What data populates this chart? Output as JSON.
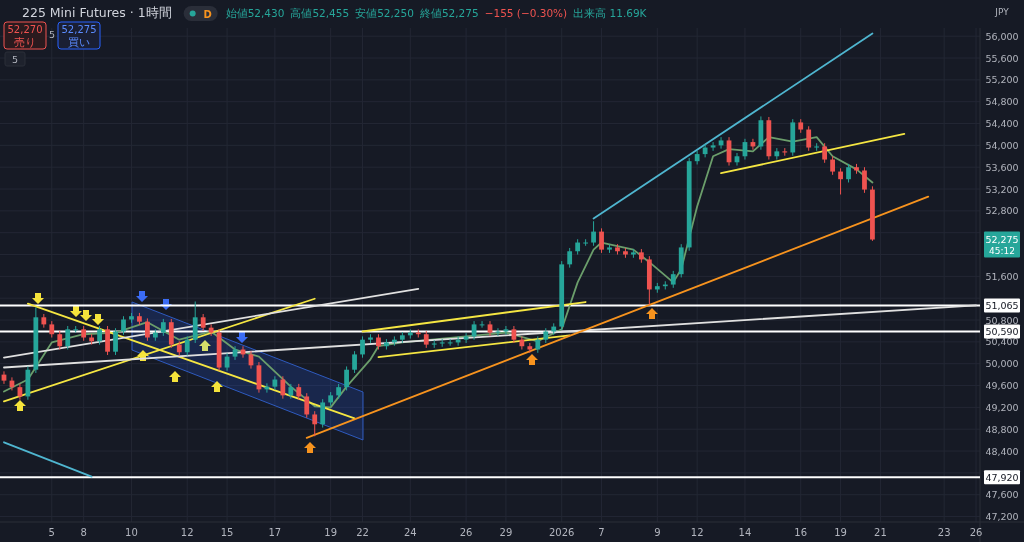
{
  "chart_data": {
    "type": "candlestick",
    "annotations": [
      "225 Mini Futures · 1時間",
      "D",
      "始値52,430",
      "高値52,455",
      "安値52,250",
      "終値52,275",
      "−155 (−0.30%)",
      "出来高 11.69K",
      "52,270",
      "売り",
      "5",
      "52,275",
      "買い",
      "5",
      "JPY",
      "52,275",
      "45:12"
    ],
    "categories": [
      null,
      null,
      null,
      null,
      null,
      null,
      "5",
      null,
      null,
      null,
      "8",
      null,
      null,
      null,
      null,
      null,
      "10",
      null,
      null,
      null,
      null,
      null,
      null,
      "12",
      null,
      null,
      null,
      null,
      "15",
      null,
      null,
      null,
      null,
      null,
      "17",
      null,
      null,
      null,
      null,
      null,
      null,
      "19",
      null,
      null,
      null,
      "22",
      null,
      null,
      null,
      null,
      null,
      "24",
      null,
      null,
      null,
      null,
      null,
      null,
      "26",
      null,
      null,
      null,
      null,
      "29",
      null,
      null,
      null,
      null,
      null,
      null,
      "2026",
      null,
      null,
      null,
      null,
      "7",
      null,
      null,
      null,
      null,
      null,
      null,
      "9",
      null,
      null,
      null,
      null,
      "12",
      null,
      null,
      null,
      null,
      null,
      "14",
      null,
      null,
      null,
      null,
      null,
      null,
      "16",
      null,
      null,
      null,
      null,
      "19",
      null,
      null,
      null,
      null,
      "21",
      null,
      null,
      null,
      null,
      null,
      null,
      null,
      "23",
      null,
      null,
      null,
      "26"
    ],
    "ohlc": [
      [
        49800,
        49860,
        49630,
        49690
      ],
      [
        49690,
        49750,
        49510,
        49570
      ],
      [
        49570,
        49630,
        49340,
        49400
      ],
      [
        49400,
        49950,
        49340,
        49890
      ],
      [
        49890,
        51030,
        49830,
        50850
      ],
      [
        50850,
        50910,
        50660,
        50720
      ],
      [
        50720,
        50780,
        50480,
        50540
      ],
      [
        50540,
        50600,
        50260,
        50320
      ],
      [
        50320,
        50690,
        50260,
        50630
      ],
      [
        50630,
        50690,
        50570,
        50630
      ],
      [
        50630,
        50690,
        50420,
        50480
      ],
      [
        50480,
        50540,
        50350,
        50410
      ],
      [
        50410,
        50690,
        50350,
        50630
      ],
      [
        50630,
        50690,
        50160,
        50220
      ],
      [
        50220,
        50650,
        50160,
        50590
      ],
      [
        50590,
        50870,
        50530,
        50810
      ],
      [
        50810,
        50930,
        50750,
        50870
      ],
      [
        50870,
        50930,
        50710,
        50770
      ],
      [
        50770,
        50830,
        50420,
        50480
      ],
      [
        50480,
        50630,
        50420,
        50570
      ],
      [
        50570,
        50820,
        50510,
        50760
      ],
      [
        50760,
        50820,
        50290,
        50350
      ],
      [
        50350,
        50410,
        50150,
        50210
      ],
      [
        50210,
        50500,
        50150,
        50440
      ],
      [
        50440,
        51140,
        50380,
        50850
      ],
      [
        50850,
        50910,
        50600,
        50660
      ],
      [
        50660,
        50720,
        50510,
        50570
      ],
      [
        50570,
        50630,
        49870,
        49930
      ],
      [
        49930,
        50190,
        49870,
        50130
      ],
      [
        50130,
        50320,
        50070,
        50260
      ],
      [
        50260,
        50320,
        50110,
        50170
      ],
      [
        50170,
        50230,
        49910,
        49970
      ],
      [
        49970,
        50030,
        49470,
        49530
      ],
      [
        49530,
        49640,
        49470,
        49580
      ],
      [
        49580,
        49770,
        49520,
        49710
      ],
      [
        49710,
        49770,
        49360,
        49420
      ],
      [
        49420,
        49630,
        49360,
        49570
      ],
      [
        49570,
        49630,
        49340,
        49400
      ],
      [
        49400,
        49460,
        49010,
        49070
      ],
      [
        49070,
        49130,
        48670,
        48890
      ],
      [
        48890,
        49350,
        48830,
        49290
      ],
      [
        49290,
        49480,
        49230,
        49420
      ],
      [
        49420,
        49630,
        49360,
        49570
      ],
      [
        49570,
        49950,
        49510,
        49890
      ],
      [
        49890,
        50230,
        49830,
        50170
      ],
      [
        50170,
        50500,
        50110,
        50440
      ],
      [
        50440,
        50540,
        50380,
        50480
      ],
      [
        50480,
        50540,
        50260,
        50320
      ],
      [
        50320,
        50450,
        50260,
        50390
      ],
      [
        50390,
        50500,
        50330,
        50440
      ],
      [
        50440,
        50580,
        50380,
        50520
      ],
      [
        50520,
        50630,
        50460,
        50570
      ],
      [
        50570,
        50630,
        50480,
        50540
      ],
      [
        50540,
        50600,
        50290,
        50350
      ],
      [
        50350,
        50430,
        50290,
        50370
      ],
      [
        50370,
        50450,
        50310,
        50390
      ],
      [
        50390,
        50450,
        50330,
        50390
      ],
      [
        50390,
        50500,
        50330,
        50440
      ],
      [
        50440,
        50560,
        50380,
        50500
      ],
      [
        50500,
        50780,
        50440,
        50720
      ],
      [
        50720,
        50780,
        50660,
        50720
      ],
      [
        50720,
        50780,
        50510,
        50570
      ],
      [
        50570,
        50650,
        50510,
        50590
      ],
      [
        50590,
        50690,
        50530,
        50630
      ],
      [
        50630,
        50690,
        50380,
        50440
      ],
      [
        50440,
        50500,
        50260,
        50320
      ],
      [
        50320,
        50380,
        50200,
        50260
      ],
      [
        50260,
        50500,
        50200,
        50440
      ],
      [
        50440,
        50650,
        50380,
        50590
      ],
      [
        50590,
        50740,
        50530,
        50680
      ],
      [
        50680,
        51880,
        50620,
        51820
      ],
      [
        51820,
        52120,
        51760,
        52060
      ],
      [
        52060,
        52280,
        52000,
        52220
      ],
      [
        52220,
        52280,
        52160,
        52220
      ],
      [
        52220,
        52610,
        52160,
        52420
      ],
      [
        52420,
        52480,
        52030,
        52090
      ],
      [
        52090,
        52190,
        52030,
        52130
      ],
      [
        52130,
        52190,
        52000,
        52060
      ],
      [
        52060,
        52120,
        51940,
        52000
      ],
      [
        52000,
        52100,
        51940,
        52040
      ],
      [
        52040,
        52100,
        51850,
        51910
      ],
      [
        51910,
        51970,
        51080,
        51360
      ],
      [
        51360,
        51480,
        51300,
        51420
      ],
      [
        51420,
        51510,
        51360,
        51450
      ],
      [
        51450,
        51700,
        51390,
        51640
      ],
      [
        51640,
        52190,
        51580,
        52130
      ],
      [
        52130,
        53770,
        52070,
        53710
      ],
      [
        53710,
        53900,
        53650,
        53840
      ],
      [
        53840,
        54020,
        53780,
        53960
      ],
      [
        53960,
        54060,
        53900,
        54000
      ],
      [
        54000,
        54150,
        53940,
        54090
      ],
      [
        54090,
        54150,
        53630,
        53690
      ],
      [
        53690,
        53860,
        53630,
        53800
      ],
      [
        53800,
        54120,
        53740,
        54060
      ],
      [
        54060,
        54120,
        53920,
        53980
      ],
      [
        53980,
        54530,
        53920,
        54460
      ],
      [
        54460,
        54520,
        53740,
        53800
      ],
      [
        53800,
        53950,
        53740,
        53890
      ],
      [
        53890,
        53950,
        53810,
        53870
      ],
      [
        53870,
        54480,
        53810,
        54420
      ],
      [
        54420,
        54480,
        54230,
        54290
      ],
      [
        54290,
        54350,
        53900,
        53960
      ],
      [
        53960,
        54040,
        53900,
        53980
      ],
      [
        53980,
        54040,
        53680,
        53740
      ],
      [
        53740,
        53800,
        53460,
        53520
      ],
      [
        53520,
        53580,
        53100,
        53380
      ],
      [
        53380,
        53660,
        53320,
        53600
      ],
      [
        53600,
        53660,
        53480,
        53540
      ],
      [
        53540,
        53600,
        53130,
        53190
      ],
      [
        53190,
        53250,
        52250,
        52275
      ],
      null,
      null,
      null,
      null,
      null,
      null,
      null,
      null,
      null,
      null,
      null,
      null,
      null
    ],
    "series": [
      {
        "type": "line",
        "color": "#6b9e6b",
        "values": [
          49490,
          null,
          null,
          49710,
          null,
          null,
          50390,
          null,
          null,
          null,
          50540,
          null,
          null,
          null,
          50570,
          null,
          null,
          null,
          50760,
          null,
          null,
          null,
          50440,
          null,
          null,
          null,
          50590,
          null,
          null,
          50260,
          null,
          null,
          50130,
          null,
          null,
          null,
          49580,
          null,
          null,
          49220,
          null,
          49200,
          null,
          49580,
          null,
          null,
          50080,
          50320,
          null,
          null,
          50390,
          null,
          null,
          null,
          null,
          null,
          null,
          null,
          50500,
          null,
          null,
          null,
          null,
          50570,
          null,
          null,
          null,
          50410,
          null,
          null,
          50630,
          null,
          51490,
          null,
          52090,
          52220,
          null,
          null,
          null,
          52090,
          null,
          51860,
          null,
          null,
          51490,
          51730,
          null,
          52880,
          null,
          53800,
          null,
          53930,
          null,
          null,
          53890,
          null,
          54150,
          null,
          null,
          54070,
          null,
          null,
          54150,
          null,
          53800,
          null,
          null,
          53560,
          null,
          53320,
          null,
          null,
          null,
          null,
          null,
          null,
          null,
          null,
          null,
          null,
          null,
          null,
          null
        ]
      },
      {
        "type": "line",
        "color": "#f5e642",
        "values": [
          null,
          null,
          null,
          51100,
          null,
          null,
          null,
          null,
          null,
          null,
          null,
          null,
          null,
          null,
          null,
          null,
          null,
          null,
          null,
          null,
          null,
          null,
          null,
          null,
          null,
          null,
          null,
          null,
          null,
          null,
          null,
          null,
          null,
          null,
          null,
          null,
          null,
          null,
          null,
          null,
          null,
          null,
          null,
          null,
          49000,
          null,
          null,
          null,
          null,
          null,
          null,
          null,
          null,
          null,
          null,
          null,
          null,
          null,
          null,
          null,
          null,
          null,
          null,
          null,
          null,
          null,
          null,
          null,
          null,
          null,
          null,
          null,
          null,
          null,
          null,
          null,
          null,
          null,
          null,
          null,
          null,
          null,
          null,
          null,
          null,
          null,
          null,
          null,
          null,
          null,
          null,
          null,
          null,
          null,
          null,
          null,
          null,
          null,
          null,
          null,
          null,
          null,
          null,
          null,
          null,
          null,
          null,
          null,
          null,
          null,
          null,
          null,
          null,
          null,
          null,
          null,
          null,
          null,
          null,
          null,
          null,
          null,
          null
        ]
      },
      {
        "type": "line",
        "color": "#f5e642",
        "values": [
          49310,
          null,
          null,
          null,
          null,
          null,
          null,
          null,
          null,
          null,
          null,
          null,
          null,
          null,
          null,
          null,
          null,
          null,
          null,
          null,
          null,
          null,
          null,
          null,
          null,
          null,
          null,
          null,
          null,
          null,
          null,
          null,
          null,
          null,
          null,
          null,
          null,
          null,
          null,
          51190,
          null,
          null,
          null,
          null,
          null,
          null,
          null,
          null,
          null,
          null,
          null,
          null,
          null,
          null,
          null,
          null,
          null,
          null,
          null,
          null,
          null,
          null,
          null,
          null,
          null,
          null,
          null,
          null,
          null,
          null,
          null,
          null,
          null,
          null,
          null,
          null,
          null,
          null,
          null,
          null,
          null,
          null,
          null,
          null,
          null,
          null,
          null,
          null,
          null,
          null,
          null,
          null,
          null,
          null,
          null,
          null,
          null,
          null,
          null,
          null,
          null,
          null,
          null,
          null,
          null,
          null,
          null,
          null,
          null,
          null,
          null,
          null,
          null,
          null,
          null,
          null,
          null,
          null,
          null,
          null,
          null,
          null,
          null
        ]
      },
      {
        "type": "line",
        "color": "#e0e0e0",
        "values": [
          50110,
          null,
          null,
          null,
          null,
          null,
          null,
          null,
          null,
          null,
          null,
          null,
          null,
          null,
          null,
          null,
          null,
          null,
          null,
          null,
          null,
          null,
          null,
          null,
          null,
          null,
          null,
          null,
          null,
          null,
          null,
          null,
          null,
          null,
          null,
          null,
          null,
          null,
          null,
          null,
          null,
          null,
          null,
          null,
          null,
          null,
          null,
          null,
          null,
          null,
          null,
          null,
          51370,
          null,
          null,
          null,
          null,
          null,
          null,
          null,
          null,
          null,
          null,
          null,
          null,
          null,
          null,
          null,
          null,
          null,
          null,
          null,
          null,
          null,
          null,
          null,
          null,
          null,
          null,
          null,
          null,
          null,
          null,
          null,
          null,
          null,
          null,
          null,
          null,
          null,
          null,
          null,
          null,
          null,
          null,
          null,
          null,
          null,
          null,
          null,
          null,
          null,
          null,
          null,
          null,
          null,
          null,
          null,
          null,
          null,
          null,
          null,
          null,
          null,
          null,
          null,
          null,
          null,
          null,
          null,
          null,
          null,
          null
        ]
      },
      {
        "type": "line",
        "color": "#e0e0e0",
        "values": [
          49930,
          null,
          null,
          null,
          null,
          null,
          null,
          null,
          null,
          null,
          null,
          null,
          null,
          null,
          null,
          null,
          null,
          null,
          null,
          null,
          null,
          null,
          null,
          null,
          null,
          null,
          null,
          null,
          null,
          null,
          null,
          null,
          null,
          null,
          null,
          null,
          null,
          null,
          null,
          null,
          null,
          null,
          null,
          null,
          null,
          null,
          null,
          null,
          null,
          null,
          null,
          null,
          null,
          null,
          null,
          null,
          null,
          null,
          null,
          null,
          null,
          null,
          null,
          null,
          null,
          null,
          null,
          null,
          null,
          null,
          null,
          null,
          null,
          null,
          null,
          null,
          null,
          null,
          null,
          null,
          null,
          null,
          null,
          null,
          null,
          null,
          null,
          null,
          null,
          null,
          null,
          null,
          null,
          null,
          null,
          null,
          null,
          null,
          null,
          null,
          null,
          null,
          null,
          null,
          null,
          null,
          null,
          null,
          null,
          null,
          null,
          null,
          null,
          null,
          null,
          null,
          null,
          null,
          null,
          null,
          null,
          null,
          51070
        ]
      },
      {
        "type": "line",
        "color": "#f5e642",
        "values": [
          null,
          null,
          null,
          null,
          null,
          null,
          null,
          null,
          null,
          null,
          null,
          null,
          null,
          null,
          null,
          null,
          null,
          null,
          null,
          null,
          null,
          null,
          null,
          null,
          null,
          null,
          null,
          null,
          null,
          null,
          null,
          null,
          null,
          null,
          null,
          null,
          null,
          null,
          null,
          null,
          null,
          null,
          null,
          null,
          null,
          50590,
          null,
          null,
          null,
          null,
          null,
          null,
          null,
          null,
          null,
          null,
          null,
          null,
          null,
          null,
          null,
          null,
          null,
          null,
          null,
          null,
          null,
          null,
          null,
          null,
          null,
          null,
          null,
          51130,
          null,
          null,
          null,
          null,
          null,
          null,
          null,
          null,
          null,
          null,
          null,
          null,
          null,
          null,
          null,
          null,
          null,
          null,
          null,
          null,
          null,
          null,
          null,
          null,
          null,
          null,
          null,
          null,
          null,
          null,
          null,
          null,
          null,
          null,
          null,
          null,
          null,
          null,
          null,
          null,
          null,
          null,
          null,
          null,
          null,
          null,
          null,
          null,
          null
        ]
      },
      {
        "type": "line",
        "color": "#f5e642",
        "values": [
          null,
          null,
          null,
          null,
          null,
          null,
          null,
          null,
          null,
          null,
          null,
          null,
          null,
          null,
          null,
          null,
          null,
          null,
          null,
          null,
          null,
          null,
          null,
          null,
          null,
          null,
          null,
          null,
          null,
          null,
          null,
          null,
          null,
          null,
          null,
          null,
          null,
          null,
          null,
          null,
          null,
          null,
          null,
          null,
          null,
          null,
          null,
          50120,
          null,
          null,
          null,
          null,
          null,
          null,
          null,
          null,
          null,
          null,
          null,
          null,
          null,
          null,
          null,
          null,
          null,
          null,
          null,
          null,
          null,
          null,
          null,
          50520,
          null,
          null,
          null,
          null,
          null,
          null,
          null,
          null,
          null,
          null,
          null,
          null,
          null,
          null,
          null,
          null,
          null,
          null,
          null,
          null,
          null,
          null,
          null,
          null,
          null,
          null,
          null,
          null,
          null,
          null,
          null,
          null,
          null,
          null,
          null,
          null,
          null,
          null,
          null,
          null,
          null,
          null,
          null,
          null,
          null,
          null,
          null,
          null,
          null,
          null,
          null
        ]
      },
      {
        "type": "line",
        "color": "#4fb6d0",
        "values": [
          null,
          null,
          null,
          null,
          null,
          null,
          null,
          null,
          null,
          null,
          null,
          null,
          null,
          null,
          null,
          null,
          null,
          null,
          null,
          null,
          null,
          null,
          null,
          null,
          null,
          null,
          null,
          null,
          null,
          null,
          null,
          null,
          null,
          null,
          null,
          null,
          null,
          null,
          null,
          null,
          null,
          null,
          null,
          null,
          null,
          null,
          null,
          null,
          null,
          null,
          null,
          null,
          null,
          null,
          null,
          null,
          null,
          null,
          null,
          null,
          null,
          null,
          null,
          null,
          null,
          null,
          null,
          null,
          null,
          null,
          null,
          null,
          null,
          null,
          52660,
          null,
          null,
          null,
          null,
          null,
          null,
          null,
          null,
          null,
          null,
          null,
          null,
          null,
          null,
          null,
          null,
          null,
          null,
          null,
          null,
          null,
          null,
          null,
          null,
          null,
          null,
          null,
          null,
          null,
          null,
          null,
          null,
          null,
          null,
          56050,
          null,
          null,
          null,
          null,
          null,
          null,
          null,
          null,
          null,
          null,
          null,
          null,
          null
        ]
      },
      {
        "type": "line",
        "color": "#4fb6d0",
        "values": [
          48560,
          null,
          null,
          null,
          null,
          null,
          null,
          null,
          null,
          null,
          null,
          47930,
          null,
          null,
          null,
          null,
          null,
          null,
          null,
          null,
          null,
          null,
          null,
          null,
          null,
          null,
          null,
          null,
          null,
          null,
          null,
          null,
          null,
          null,
          null,
          null,
          null,
          null,
          null,
          null,
          null,
          null,
          null,
          null,
          null,
          null,
          null,
          null,
          null,
          null,
          null,
          null,
          null,
          null,
          null,
          null,
          null,
          null,
          null,
          null,
          null,
          null,
          null,
          null,
          null,
          null,
          null,
          null,
          null,
          null,
          null,
          null,
          null,
          null,
          null,
          null,
          null,
          null,
          null,
          null,
          null,
          null,
          null,
          null,
          null,
          null,
          null,
          null,
          null,
          null,
          null,
          null,
          null,
          null,
          null,
          null,
          null,
          null,
          null,
          null,
          null,
          null,
          null,
          null,
          null,
          null,
          null,
          null,
          null,
          null,
          null,
          null,
          null,
          null,
          null,
          null,
          null,
          null,
          null,
          null,
          null,
          null,
          null
        ]
      },
      {
        "type": "line",
        "color": "#f7931e",
        "values": [
          null,
          null,
          null,
          null,
          null,
          null,
          null,
          null,
          null,
          null,
          null,
          null,
          null,
          null,
          null,
          null,
          null,
          null,
          null,
          null,
          null,
          null,
          null,
          null,
          null,
          null,
          null,
          null,
          null,
          null,
          null,
          null,
          null,
          null,
          null,
          null,
          null,
          null,
          48640,
          null,
          null,
          null,
          null,
          null,
          null,
          null,
          null,
          null,
          null,
          null,
          null,
          null,
          null,
          null,
          null,
          null,
          null,
          null,
          null,
          null,
          null,
          null,
          null,
          null,
          null,
          null,
          null,
          null,
          null,
          null,
          null,
          null,
          null,
          null,
          null,
          null,
          null,
          null,
          null,
          null,
          null,
          null,
          null,
          null,
          null,
          null,
          null,
          null,
          null,
          null,
          null,
          null,
          null,
          null,
          null,
          null,
          null,
          null,
          null,
          null,
          null,
          null,
          null,
          null,
          null,
          null,
          null,
          null,
          null,
          null,
          null,
          null,
          null,
          null,
          null,
          null,
          53060,
          null,
          null,
          null,
          null,
          null,
          null
        ]
      },
      {
        "type": "line",
        "color": "#f5e642",
        "values": [
          null,
          null,
          null,
          null,
          null,
          null,
          null,
          null,
          null,
          null,
          null,
          null,
          null,
          null,
          null,
          null,
          null,
          null,
          null,
          null,
          null,
          null,
          null,
          null,
          null,
          null,
          null,
          null,
          null,
          null,
          null,
          null,
          null,
          null,
          null,
          null,
          null,
          null,
          null,
          null,
          null,
          null,
          null,
          null,
          null,
          null,
          null,
          null,
          null,
          null,
          null,
          null,
          null,
          null,
          null,
          null,
          null,
          null,
          null,
          null,
          null,
          null,
          null,
          null,
          null,
          null,
          null,
          null,
          null,
          null,
          null,
          null,
          null,
          null,
          null,
          null,
          null,
          null,
          null,
          null,
          null,
          null,
          null,
          null,
          null,
          null,
          null,
          null,
          null,
          null,
          53490,
          null,
          null,
          null,
          null,
          null,
          null,
          null,
          null,
          null,
          null,
          null,
          null,
          null,
          null,
          null,
          null,
          null,
          null,
          null,
          null,
          null,
          null,
          54210,
          null,
          null,
          null,
          null,
          null,
          null,
          null,
          null,
          null
        ]
      }
    ],
    "ref_lines": [
      {
        "axis": "y",
        "value": 51065,
        "label": "51,065",
        "color": "#ffffff"
      },
      {
        "axis": "y",
        "value": 50590,
        "label": "50,590",
        "color": "#ffffff"
      },
      {
        "axis": "y",
        "value": 47920,
        "label": "47,920",
        "color": "#ffffff"
      }
    ],
    "ylim": [
      47100,
      56150
    ],
    "yticks": [
      {
        "value": 47200,
        "label": "47,200"
      },
      {
        "value": 47600,
        "label": "47,600"
      },
      {
        "value": 48000,
        "label": null
      },
      {
        "value": 48400,
        "label": "48,400"
      },
      {
        "value": 48800,
        "label": "48,800"
      },
      {
        "value": 49200,
        "label": "49,200"
      },
      {
        "value": 49600,
        "label": "49,600"
      },
      {
        "value": 50000,
        "label": "50,000"
      },
      {
        "value": 50400,
        "label": "50,400"
      },
      {
        "value": 50800,
        "label": "50,800"
      },
      {
        "value": 51200,
        "label": null
      },
      {
        "value": 51600,
        "label": "51,600"
      },
      {
        "value": 52000,
        "label": null
      },
      {
        "value": 52400,
        "label": null
      },
      {
        "value": 52800,
        "label": "52,800"
      },
      {
        "value": 53200,
        "label": "53,200"
      },
      {
        "value": 53600,
        "label": "53,600"
      },
      {
        "value": 54000,
        "label": "54,000"
      },
      {
        "value": 54400,
        "label": "54,400"
      },
      {
        "value": 54800,
        "label": "54,800"
      },
      {
        "value": 55200,
        "label": "55,200"
      },
      {
        "value": 55600,
        "label": "55,600"
      },
      {
        "value": 56000,
        "label": "56,000"
      }
    ],
    "grid": true
  }
}
